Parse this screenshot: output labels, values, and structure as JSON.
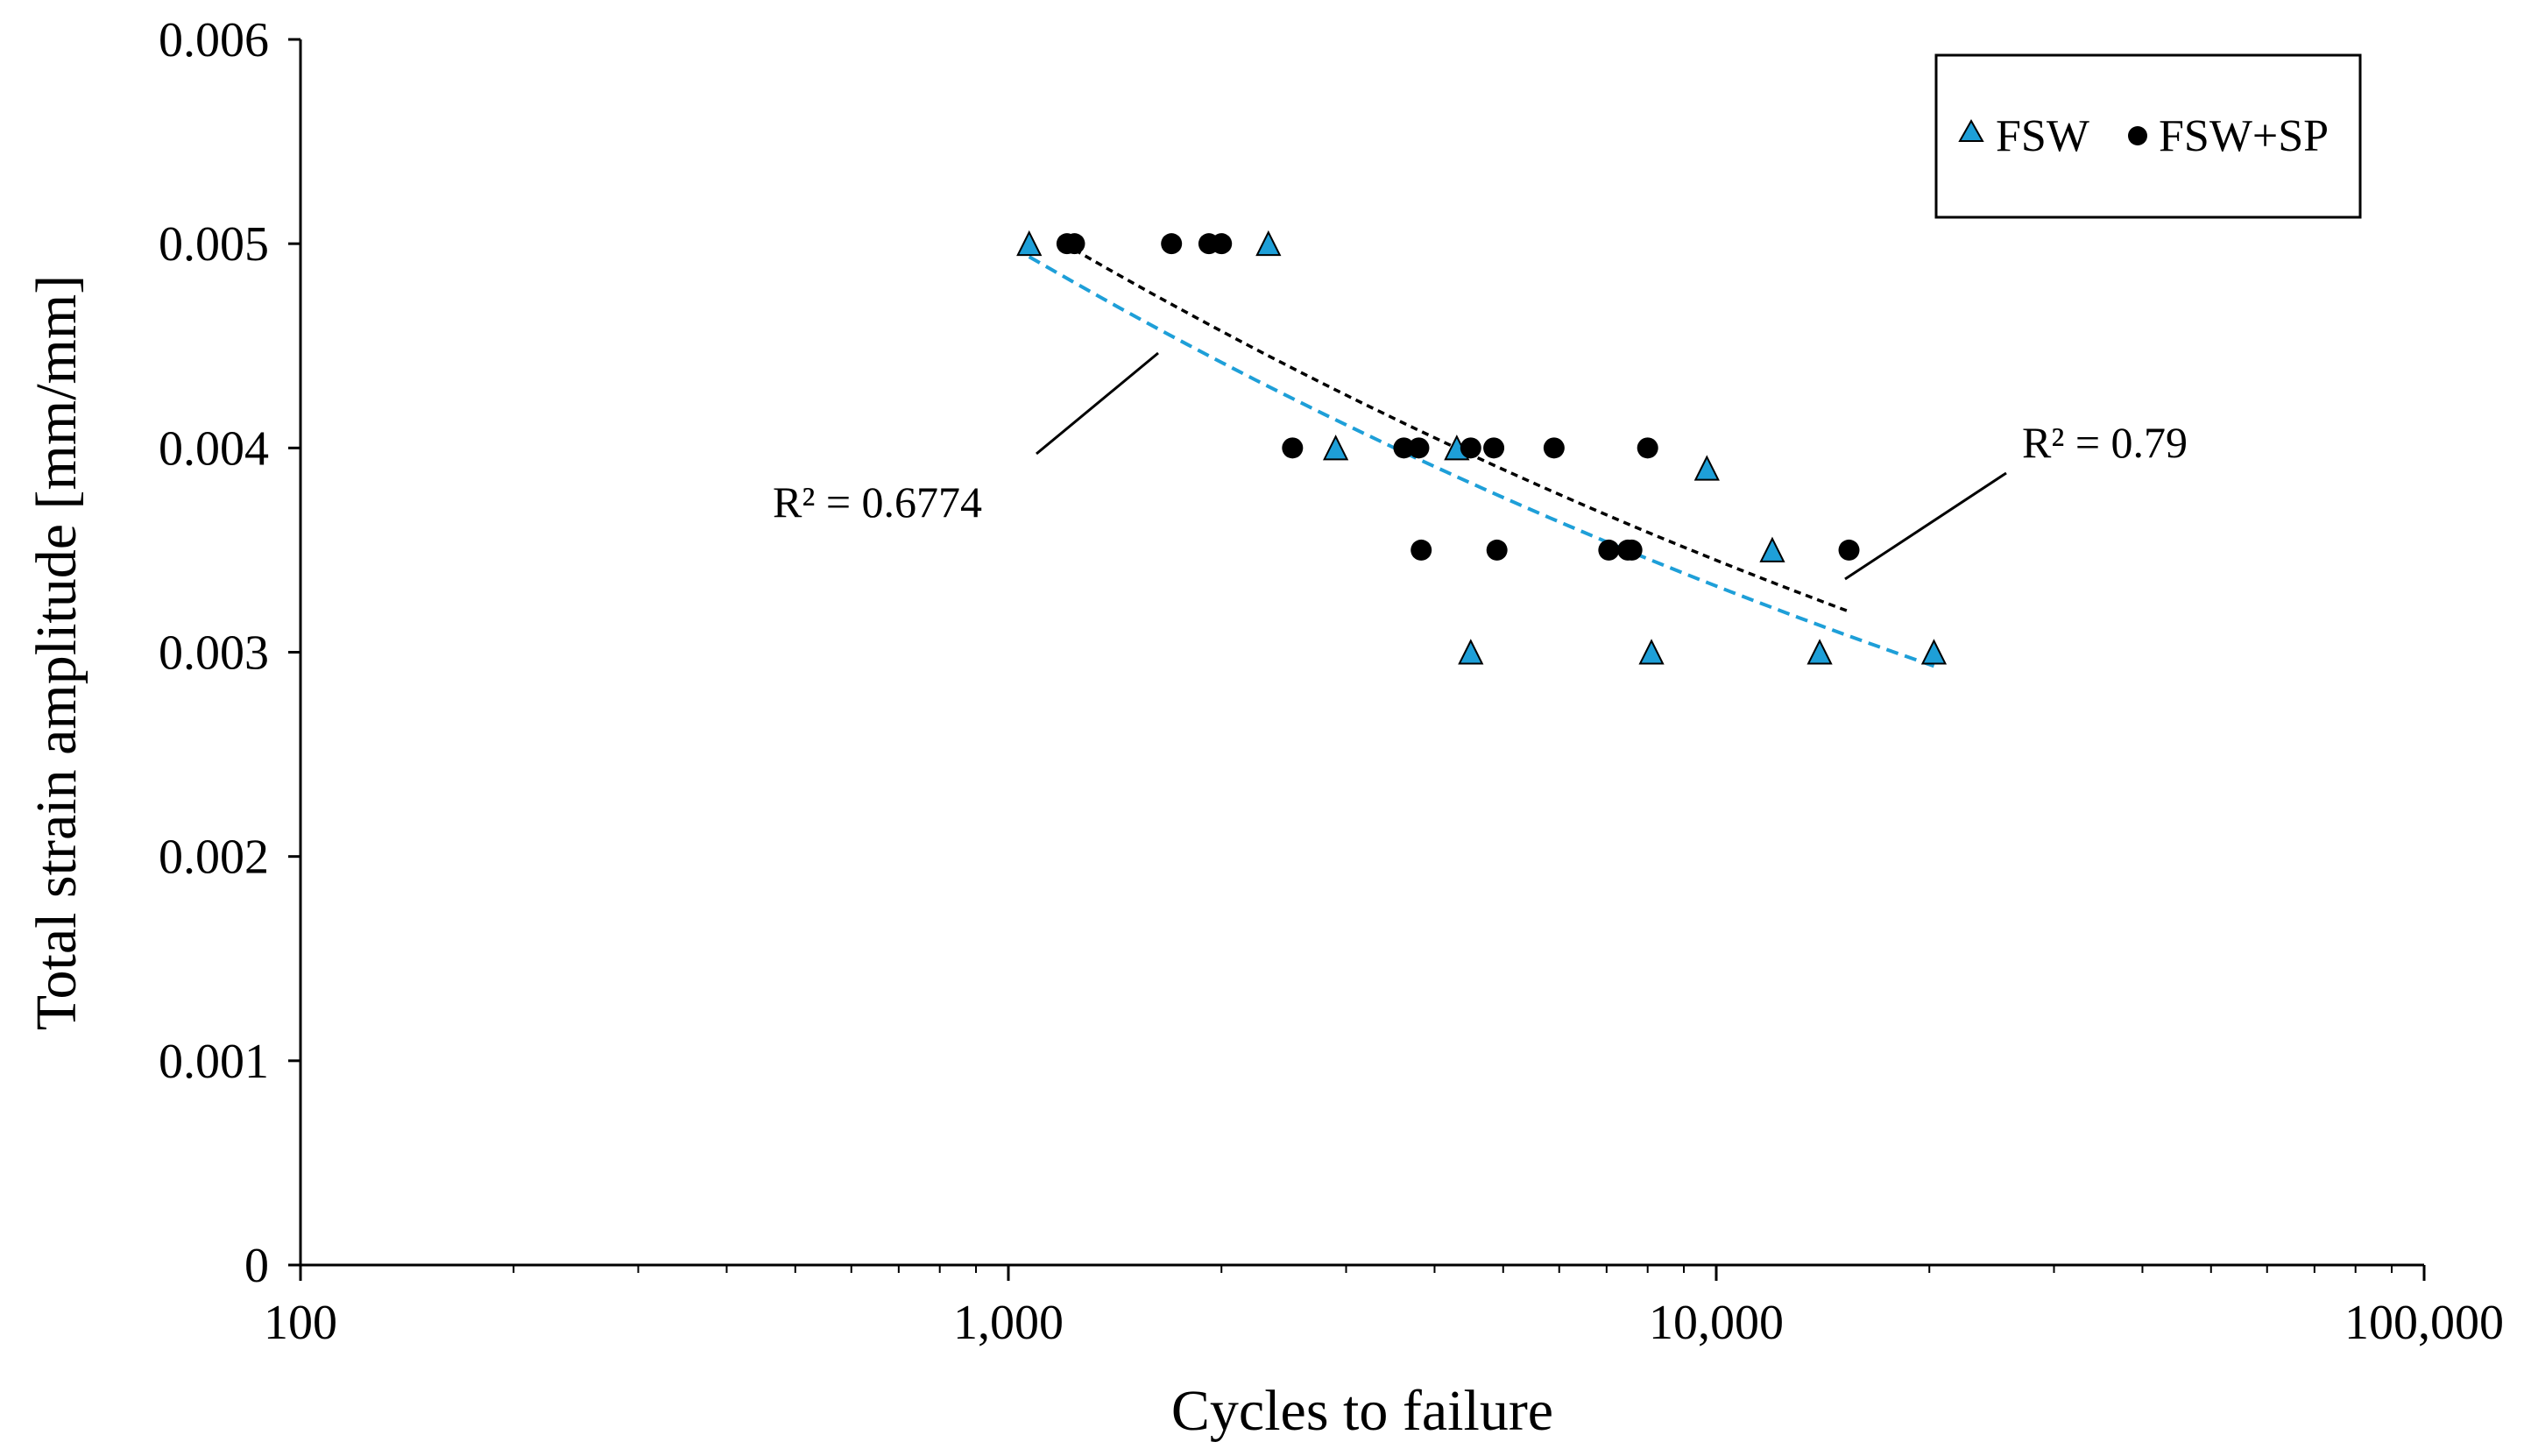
{
  "chart_data": {
    "type": "scatter",
    "title": "",
    "xlabel": "Cycles to failure",
    "ylabel": "Total strain amplitude [mm/mm]",
    "xscale": "log",
    "xlim": [
      100,
      100000
    ],
    "ylim": [
      0,
      0.006
    ],
    "xticks": [
      100,
      1000,
      10000,
      100000
    ],
    "xtick_labels": [
      "100",
      "1,000",
      "10,000",
      "100,000"
    ],
    "yticks": [
      0,
      0.001,
      0.002,
      0.003,
      0.004,
      0.005,
      0.006
    ],
    "ytick_labels": [
      "0",
      "0.001",
      "0.002",
      "0.003",
      "0.004",
      "0.005",
      "0.006"
    ],
    "grid": false,
    "legend_position": "top-right",
    "series": [
      {
        "name": "FSW",
        "marker": "triangle",
        "color": "#1e9fd8",
        "points": [
          [
            1070,
            0.005
          ],
          [
            2330,
            0.005
          ],
          [
            2900,
            0.004
          ],
          [
            4300,
            0.004
          ],
          [
            9700,
            0.0039
          ],
          [
            12000,
            0.0035
          ],
          [
            4500,
            0.003
          ],
          [
            8100,
            0.003
          ],
          [
            14000,
            0.003
          ],
          [
            20300,
            0.003
          ]
        ],
        "trendline": {
          "x": [
            1070,
            20300
          ],
          "r2_label": "R² = 0.6774",
          "color": "#1e9fd8",
          "style": "dashed"
        }
      },
      {
        "name": "FSW+SP",
        "marker": "circle",
        "color": "#000000",
        "points": [
          [
            1210,
            0.005
          ],
          [
            1240,
            0.005
          ],
          [
            1700,
            0.005
          ],
          [
            1920,
            0.005
          ],
          [
            2000,
            0.005
          ],
          [
            2520,
            0.004
          ],
          [
            3620,
            0.004
          ],
          [
            3800,
            0.004
          ],
          [
            4500,
            0.004
          ],
          [
            4850,
            0.004
          ],
          [
            5900,
            0.004
          ],
          [
            8000,
            0.004
          ],
          [
            3830,
            0.0035
          ],
          [
            4900,
            0.0035
          ],
          [
            7050,
            0.0035
          ],
          [
            7500,
            0.0035
          ],
          [
            7600,
            0.0035
          ],
          [
            15400,
            0.0035
          ]
        ],
        "trendline": {
          "x": [
            1240,
            15400
          ],
          "r2_label": "R² = 0.79",
          "color": "#000000",
          "style": "dashed"
        }
      }
    ]
  }
}
